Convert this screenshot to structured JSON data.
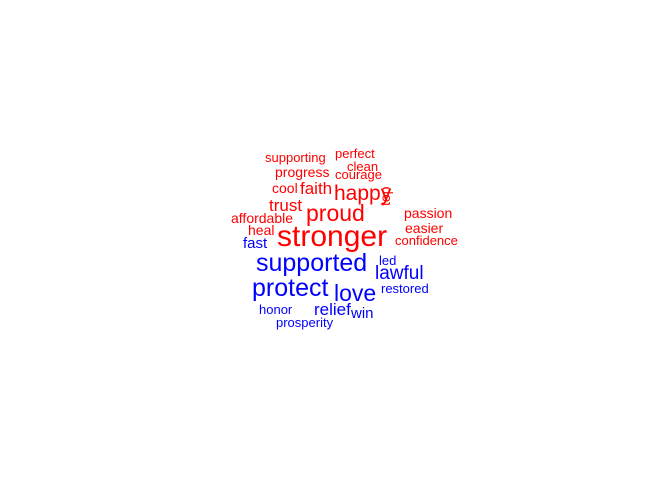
{
  "colors": {
    "red": "#ff0000",
    "blue": "#0000ff",
    "background": "#ffffff"
  },
  "words": [
    {
      "text": "supporting",
      "color": "red"
    },
    {
      "text": "perfect",
      "color": "red"
    },
    {
      "text": "clean",
      "color": "red"
    },
    {
      "text": "progress",
      "color": "red"
    },
    {
      "text": "courage",
      "color": "red"
    },
    {
      "text": "cool",
      "color": "red"
    },
    {
      "text": "faith",
      "color": "red"
    },
    {
      "text": "happy",
      "color": "red"
    },
    {
      "text": "trust",
      "color": "red"
    },
    {
      "text": "top",
      "color": "red"
    },
    {
      "text": "proud",
      "color": "red"
    },
    {
      "text": "passion",
      "color": "red"
    },
    {
      "text": "affordable",
      "color": "red"
    },
    {
      "text": "heal",
      "color": "red"
    },
    {
      "text": "easier",
      "color": "red"
    },
    {
      "text": "stronger",
      "color": "red"
    },
    {
      "text": "confidence",
      "color": "red"
    },
    {
      "text": "fast",
      "color": "blue"
    },
    {
      "text": "supported",
      "color": "blue"
    },
    {
      "text": "led",
      "color": "blue"
    },
    {
      "text": "lawful",
      "color": "blue"
    },
    {
      "text": "protect",
      "color": "blue"
    },
    {
      "text": "love",
      "color": "blue"
    },
    {
      "text": "restored",
      "color": "blue"
    },
    {
      "text": "honor",
      "color": "blue"
    },
    {
      "text": "relief",
      "color": "blue"
    },
    {
      "text": "win",
      "color": "blue"
    },
    {
      "text": "prosperity",
      "color": "blue"
    }
  ]
}
